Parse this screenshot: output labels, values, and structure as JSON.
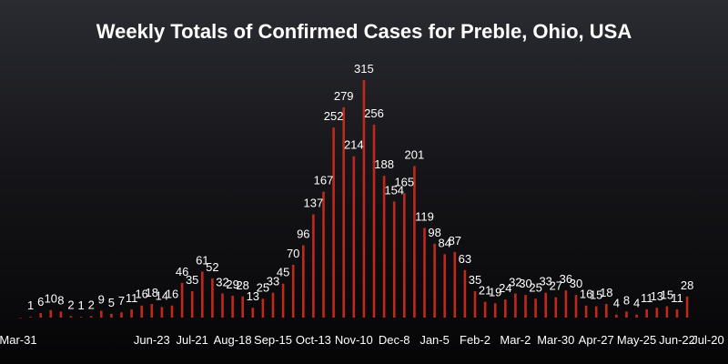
{
  "chart_data": {
    "type": "bar",
    "title": "Weekly Totals of Confirmed Cases for Preble, Ohio, USA",
    "xlabel": "",
    "ylabel": "",
    "ylim": [
      0,
      330
    ],
    "grid": false,
    "legend": "none",
    "bar_color": "#c0281c",
    "x_tick_labels": [
      "Mar-31",
      "Jun-23",
      "Jul-21",
      "Aug-18",
      "Sep-15",
      "Oct-13",
      "Nov-10",
      "Dec-8",
      "Jan-5",
      "Feb-2",
      "Mar-2",
      "Mar-30",
      "Apr-27",
      "May-25",
      "Jun-22",
      "Jul-20"
    ],
    "x_tick_indices": [
      1,
      13,
      17,
      21,
      25,
      29,
      33,
      37,
      41,
      45,
      49,
      53,
      57,
      61,
      65,
      69
    ],
    "values": [
      0,
      1,
      6,
      10,
      8,
      2,
      1,
      2,
      9,
      5,
      7,
      11,
      16,
      18,
      14,
      16,
      46,
      35,
      61,
      52,
      32,
      29,
      28,
      13,
      25,
      33,
      45,
      70,
      96,
      137,
      167,
      252,
      279,
      214,
      315,
      256,
      188,
      154,
      165,
      201,
      119,
      98,
      84,
      87,
      63,
      35,
      21,
      19,
      24,
      32,
      30,
      25,
      33,
      27,
      36,
      30,
      16,
      15,
      18,
      4,
      8,
      4,
      11,
      13,
      15,
      11,
      28
    ]
  },
  "colors": {
    "background_top": "#2a2b31",
    "background_bottom": "#050506",
    "text": "#ffffff"
  }
}
